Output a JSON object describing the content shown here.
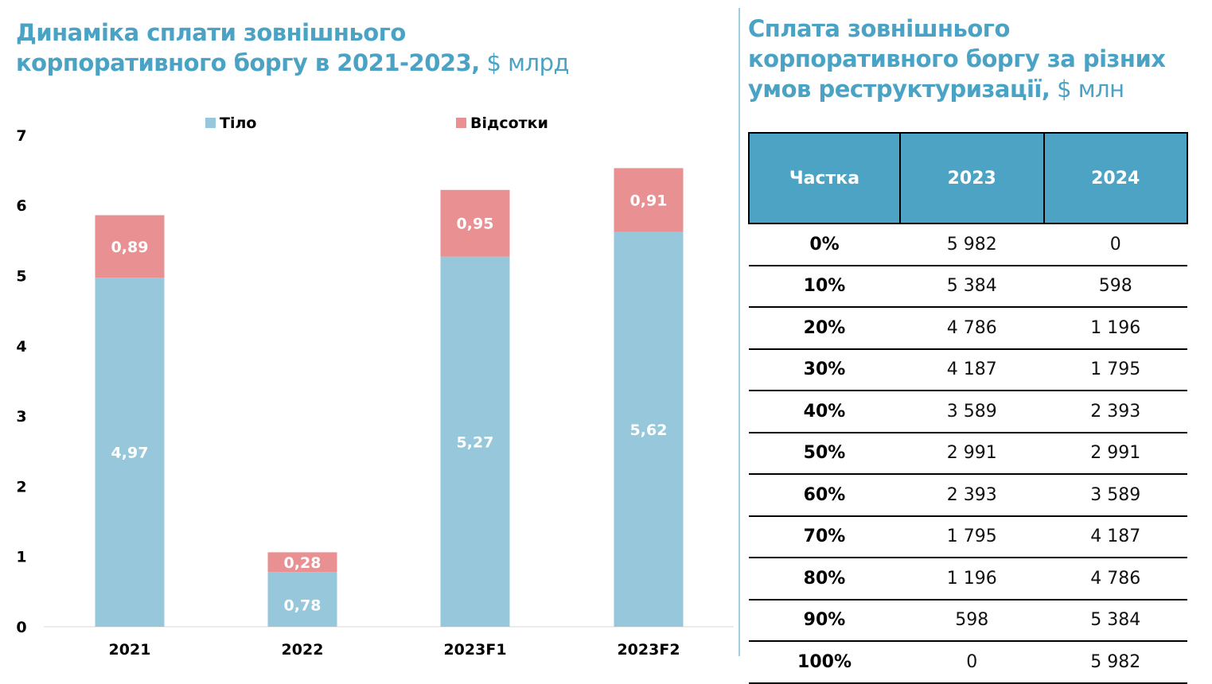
{
  "left_title": {
    "main": "Динаміка сплати зовнішнього корпоративного боргу в 2021-2023,",
    "unit": " $ млрд"
  },
  "right_title": {
    "main": "Сплата зовнішнього корпоративного боргу за різних умов реструктуризації,",
    "unit": " $ млн"
  },
  "colors": {
    "title": "#4aa3c4",
    "body": "#96c7da",
    "interest": "#e99093",
    "table_header": "#4ca3c3"
  },
  "chart_data": {
    "type": "bar",
    "stacked": true,
    "categories": [
      "2021",
      "2022",
      "2023F1",
      "2023F2"
    ],
    "series": [
      {
        "name": "Тіло",
        "values": [
          4.97,
          0.78,
          5.27,
          5.62
        ],
        "labels": [
          "4,97",
          "0,78",
          "5,27",
          "5,62"
        ]
      },
      {
        "name": "Відсотки",
        "values": [
          0.89,
          0.28,
          0.95,
          0.91
        ],
        "labels": [
          "0,89",
          "0,28",
          "0,95",
          "0,91"
        ]
      }
    ],
    "ylim": [
      0,
      7
    ],
    "yticks": [
      "0",
      "1",
      "2",
      "3",
      "4",
      "5",
      "6",
      "7"
    ],
    "legend": "top",
    "grid": false
  },
  "table": {
    "headers": [
      "Частка",
      "2023",
      "2024"
    ],
    "rows": [
      [
        "0%",
        "5 982",
        "0"
      ],
      [
        "10%",
        "5 384",
        "598"
      ],
      [
        "20%",
        "4 786",
        "1 196"
      ],
      [
        "30%",
        "4 187",
        "1 795"
      ],
      [
        "40%",
        "3 589",
        "2 393"
      ],
      [
        "50%",
        "2 991",
        "2 991"
      ],
      [
        "60%",
        "2 393",
        "3 589"
      ],
      [
        "70%",
        "1 795",
        "4 187"
      ],
      [
        "80%",
        "1 196",
        "4 786"
      ],
      [
        "90%",
        "598",
        "5 384"
      ],
      [
        "100%",
        "0",
        "5 982"
      ]
    ]
  }
}
